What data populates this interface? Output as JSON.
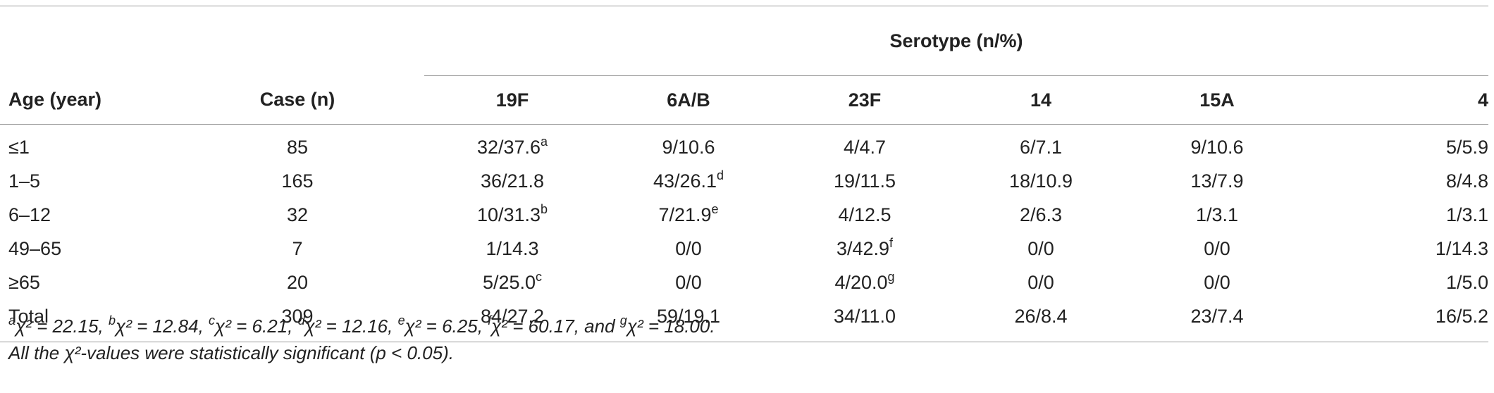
{
  "header": {
    "serotype_label": "Serotype (n/%)",
    "age_label": "Age (year)",
    "case_label": "Case (n)",
    "serotypes": [
      "19F",
      "6A/B",
      "23F",
      "14",
      "15A",
      "4"
    ]
  },
  "rows": [
    {
      "age": "≤1",
      "case": "85",
      "cells": [
        {
          "v": "32/37.6",
          "sup": "a"
        },
        {
          "v": "9/10.6",
          "sup": ""
        },
        {
          "v": "4/4.7",
          "sup": ""
        },
        {
          "v": "6/7.1",
          "sup": ""
        },
        {
          "v": "9/10.6",
          "sup": ""
        },
        {
          "v": "5/5.9",
          "sup": ""
        }
      ]
    },
    {
      "age": "1–5",
      "case": "165",
      "cells": [
        {
          "v": "36/21.8",
          "sup": ""
        },
        {
          "v": "43/26.1",
          "sup": "d"
        },
        {
          "v": "19/11.5",
          "sup": ""
        },
        {
          "v": "18/10.9",
          "sup": ""
        },
        {
          "v": "13/7.9",
          "sup": ""
        },
        {
          "v": "8/4.8",
          "sup": ""
        }
      ]
    },
    {
      "age": "6–12",
      "case": "32",
      "cells": [
        {
          "v": "10/31.3",
          "sup": "b"
        },
        {
          "v": "7/21.9",
          "sup": "e"
        },
        {
          "v": "4/12.5",
          "sup": ""
        },
        {
          "v": "2/6.3",
          "sup": ""
        },
        {
          "v": "1/3.1",
          "sup": ""
        },
        {
          "v": "1/3.1",
          "sup": ""
        }
      ]
    },
    {
      "age": "49–65",
      "case": "7",
      "cells": [
        {
          "v": "1/14.3",
          "sup": ""
        },
        {
          "v": "0/0",
          "sup": ""
        },
        {
          "v": "3/42.9",
          "sup": "f"
        },
        {
          "v": "0/0",
          "sup": ""
        },
        {
          "v": "0/0",
          "sup": ""
        },
        {
          "v": "1/14.3",
          "sup": ""
        }
      ]
    },
    {
      "age": "≥65",
      "case": "20",
      "cells": [
        {
          "v": "5/25.0",
          "sup": "c"
        },
        {
          "v": "0/0",
          "sup": ""
        },
        {
          "v": "4/20.0",
          "sup": "g"
        },
        {
          "v": "0/0",
          "sup": ""
        },
        {
          "v": "0/0",
          "sup": ""
        },
        {
          "v": "1/5.0",
          "sup": ""
        }
      ]
    },
    {
      "age": "Total",
      "case": "309",
      "cells": [
        {
          "v": "84/27.2",
          "sup": ""
        },
        {
          "v": "59/19.1",
          "sup": ""
        },
        {
          "v": "34/11.0",
          "sup": ""
        },
        {
          "v": "26/8.4",
          "sup": ""
        },
        {
          "v": "23/7.4",
          "sup": ""
        },
        {
          "v": "16/5.2",
          "sup": ""
        }
      ]
    }
  ],
  "footnotes": {
    "line1": [
      {
        "sup": "a",
        "text": "χ² = 22.15, "
      },
      {
        "sup": "b",
        "text": "χ² = 12.84, "
      },
      {
        "sup": "c",
        "text": "χ² = 6.21, "
      },
      {
        "sup": "d",
        "text": "χ² = 12.16, "
      },
      {
        "sup": "e",
        "text": "χ² = 6.25, "
      },
      {
        "sup": "f",
        "text": "χ² = 60.17, and "
      },
      {
        "sup": "g",
        "text": "χ² = 18.00."
      }
    ],
    "line2": "All the χ²-values were statistically significant (p < 0.05)."
  }
}
